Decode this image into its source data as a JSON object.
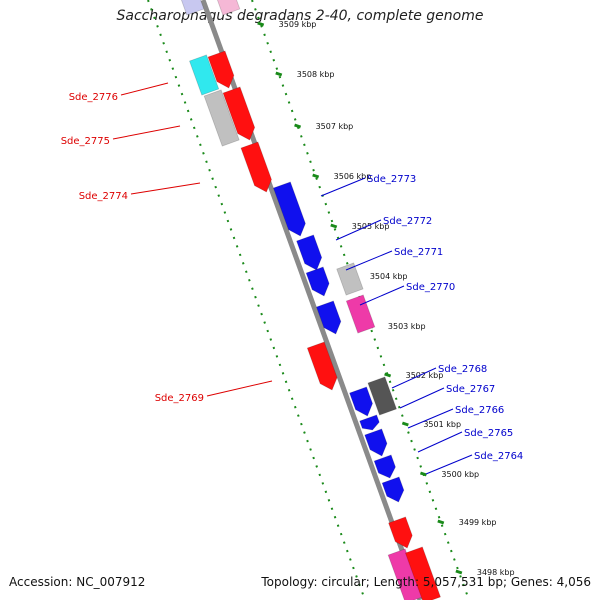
{
  "title": "Saccharophagus degradans 2-40, complete genome",
  "accession": "Accession: NC_007912",
  "topology": "Topology: circular; Length: 5,057,531 bp; Genes: 4,056",
  "colors": {
    "forward": "#ff1010",
    "reverse": "#1010ee",
    "grey": "#c0c0c0",
    "dark_grey": "#555555",
    "cyan": "#30e8ee",
    "magenta": "#ee3aa8",
    "pink": "#f5b8d6",
    "lavender": "#c8c8f0",
    "backbone": "#8a8a8a",
    "guide": "#1a8a1a",
    "left_label": "#dd0000",
    "right_label": "#0000cc"
  },
  "kbp_ticks": [
    "3509 kbp",
    "3508 kbp",
    "3507 kbp",
    "3506 kbp",
    "3505 kbp",
    "3504 kbp",
    "3503 kbp",
    "3502 kbp",
    "3501 kbp",
    "3500 kbp",
    "3499 kbp",
    "3498 kbp"
  ],
  "left_genes": [
    "Sde_2776",
    "Sde_2775",
    "Sde_2774",
    "Sde_2769"
  ],
  "right_genes": [
    "Sde_2773",
    "Sde_2772",
    "Sde_2771",
    "Sde_2770",
    "Sde_2768",
    "Sde_2767",
    "Sde_2766",
    "Sde_2765",
    "Sde_2764"
  ]
}
